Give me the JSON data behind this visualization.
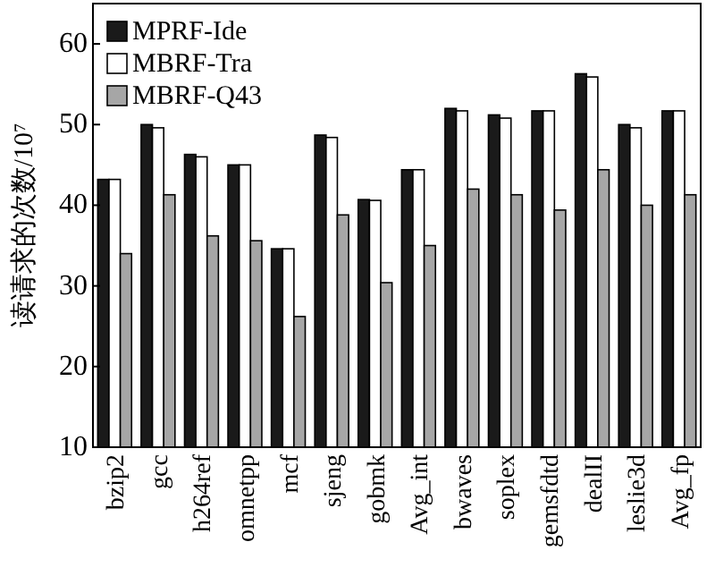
{
  "chart_data": {
    "type": "bar",
    "ylabel": "读请求的次数/10⁷",
    "categories": [
      "bzip2",
      "gcc",
      "h264ref",
      "omnetpp",
      "mcf",
      "sjeng",
      "gobmk",
      "Avg_int",
      "bwaves",
      "soplex",
      "gemsfdtd",
      "dealII",
      "leslie3d",
      "Avg_fp"
    ],
    "series": [
      {
        "name": "MPRF-Ide",
        "color": "#1a1a1a",
        "values": [
          43.2,
          50.0,
          46.3,
          45.0,
          34.6,
          48.7,
          40.7,
          44.4,
          52.0,
          51.2,
          51.7,
          56.3,
          50.0,
          51.7
        ]
      },
      {
        "name": "MBRF-Tra",
        "color": "#ffffff",
        "values": [
          43.2,
          49.6,
          46.0,
          45.0,
          34.6,
          48.4,
          40.6,
          44.4,
          51.7,
          50.8,
          51.7,
          55.9,
          49.6,
          51.7
        ]
      },
      {
        "name": "MBRF-Q43",
        "color": "#a6a6a6",
        "values": [
          34.0,
          41.3,
          36.2,
          35.6,
          26.2,
          38.8,
          30.4,
          35.0,
          42.0,
          41.3,
          39.4,
          44.4,
          40.0,
          41.3
        ]
      }
    ],
    "ylim": [
      10,
      65
    ],
    "yticks": [
      10,
      20,
      30,
      40,
      50,
      60
    ],
    "legend": "top left",
    "grid": false
  }
}
